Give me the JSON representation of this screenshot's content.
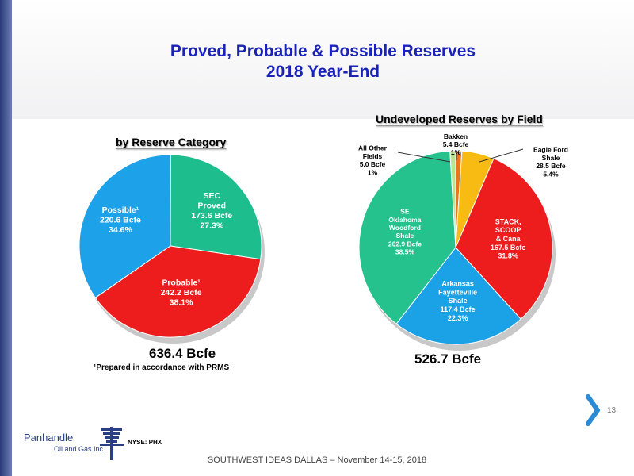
{
  "slide": {
    "title_line1": "Proved, Probable & Possible Reserves",
    "title_line2": "2018 Year-End",
    "footer": "SOUTHWEST IDEAS DALLAS – November 14-15, 2018",
    "page_number": "13",
    "logo_name": "Panhandle",
    "logo_sub": "Oil and Gas Inc.",
    "ticker": "NYSE: PHX"
  },
  "colors": {
    "title": "#1a23b6",
    "possible": "#1da1e8",
    "proved": "#1dbd8e",
    "probable": "#ee1d1d",
    "se_oklahoma": "#25c28d",
    "arkansas": "#1aa1e6",
    "stack": "#ee1d1d",
    "eagle_ford": "#f7bb14",
    "bakken": "#e8761c",
    "other": "#b8e68a"
  },
  "chart_data": [
    {
      "type": "pie",
      "title": "by Reserve Category",
      "total_label": "636.4 Bcfe",
      "footnote": "¹Prepared in accordance with PRMS",
      "slices": [
        {
          "key": "possible",
          "lines": [
            "Possible¹",
            "220.6 Bcfe",
            "34.6%"
          ],
          "value": 220.6,
          "percent": 34.6
        },
        {
          "key": "proved",
          "lines": [
            "SEC",
            "Proved",
            "173.6 Bcfe",
            "27.3%"
          ],
          "value": 173.6,
          "percent": 27.3
        },
        {
          "key": "probable",
          "lines": [
            "Probable¹",
            "242.2 Bcfe",
            "38.1%"
          ],
          "value": 242.2,
          "percent": 38.1
        }
      ]
    },
    {
      "type": "pie",
      "title": "Undeveloped Reserves by Field",
      "total_label": "526.7 Bcfe",
      "slices": [
        {
          "key": "bakken",
          "lines": [
            "Bakken",
            "5.4 Bcfe",
            "1%"
          ],
          "value": 5.4,
          "percent": 1
        },
        {
          "key": "eagle_ford",
          "lines": [
            "Eagle Ford",
            "Shale",
            "28.5 Bcfe",
            "5.4%"
          ],
          "value": 28.5,
          "percent": 5.4
        },
        {
          "key": "stack",
          "lines": [
            "STACK,",
            "SCOOP",
            "& Cana",
            "167.5 Bcfe",
            "31.8%"
          ],
          "value": 167.5,
          "percent": 31.8
        },
        {
          "key": "arkansas",
          "lines": [
            "Arkansas",
            "Fayetteville",
            "Shale",
            "117.4 Bcfe",
            "22.3%"
          ],
          "value": 117.4,
          "percent": 22.3
        },
        {
          "key": "se_oklahoma",
          "lines": [
            "SE",
            "Oklahoma",
            "Woodford",
            "Shale",
            "202.9 Bcfe",
            "38.5%"
          ],
          "value": 202.9,
          "percent": 38.5
        },
        {
          "key": "other",
          "lines": [
            "All Other",
            "Fields",
            "5.0 Bcfe",
            "1%"
          ],
          "value": 5.0,
          "percent": 1
        }
      ]
    }
  ]
}
